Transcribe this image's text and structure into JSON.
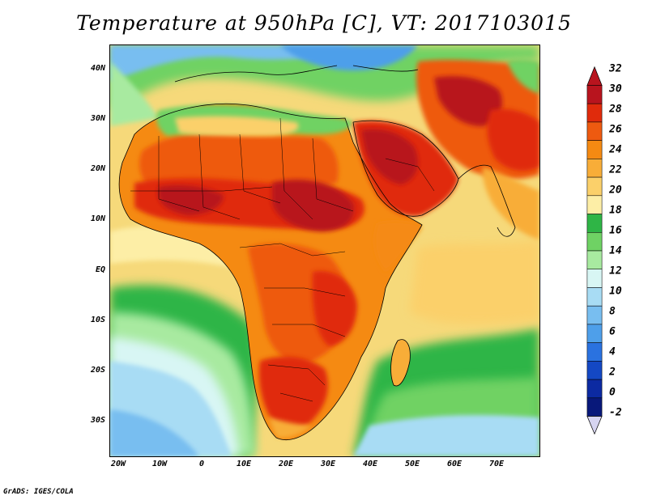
{
  "title": "Temperature at 950hPa [C], VT: 2017103015",
  "map": {
    "lat_labels": [
      "40N",
      "30N",
      "20N",
      "10N",
      "EQ",
      "10S",
      "20S",
      "30S"
    ],
    "lon_labels": [
      "20W",
      "10W",
      "0",
      "10E",
      "20E",
      "30E",
      "40E",
      "50E",
      "60E",
      "70E"
    ]
  },
  "colorbar": {
    "levels": [
      "32",
      "30",
      "28",
      "26",
      "24",
      "22",
      "20",
      "18",
      "16",
      "14",
      "12",
      "10",
      "8",
      "6",
      "4",
      "2",
      "0",
      "-2"
    ],
    "colors": [
      "#b8141e",
      "#e02b0c",
      "#ee5a10",
      "#f58a12",
      "#f8ad38",
      "#fbd06a",
      "#fdeea6",
      "#2fb546",
      "#6fd264",
      "#a8eaa0",
      "#d8f6f4",
      "#a8dcf4",
      "#78bef0",
      "#4e9fea",
      "#2a72e0",
      "#1448c4",
      "#0c2aa2",
      "#08187a"
    ],
    "top_triangle_color": "#b8141e",
    "bottom_triangle_color": "#d6d4f0"
  },
  "credit": "GrADS: IGES/COLA"
}
